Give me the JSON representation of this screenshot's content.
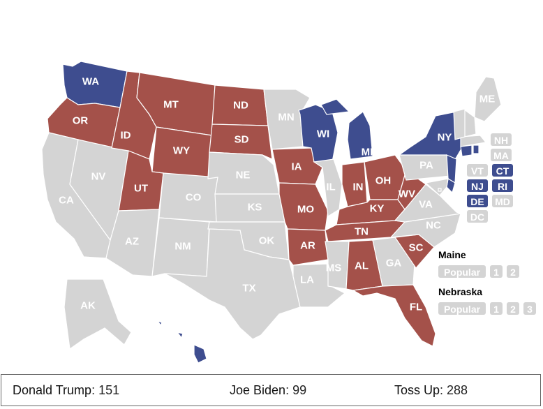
{
  "colors": {
    "trump": "#a4514a",
    "biden": "#3e4d8f",
    "tossup": "#d4d4d4"
  },
  "states": [
    {
      "abbr": "WA",
      "party": "biden"
    },
    {
      "abbr": "OR",
      "party": "trump"
    },
    {
      "abbr": "CA",
      "party": "tossup"
    },
    {
      "abbr": "NV",
      "party": "tossup"
    },
    {
      "abbr": "ID",
      "party": "trump"
    },
    {
      "abbr": "MT",
      "party": "trump"
    },
    {
      "abbr": "WY",
      "party": "trump"
    },
    {
      "abbr": "UT",
      "party": "trump"
    },
    {
      "abbr": "AZ",
      "party": "tossup"
    },
    {
      "abbr": "CO",
      "party": "tossup"
    },
    {
      "abbr": "NM",
      "party": "tossup"
    },
    {
      "abbr": "ND",
      "party": "trump"
    },
    {
      "abbr": "SD",
      "party": "trump"
    },
    {
      "abbr": "NE",
      "party": "tossup"
    },
    {
      "abbr": "KS",
      "party": "tossup"
    },
    {
      "abbr": "OK",
      "party": "tossup"
    },
    {
      "abbr": "TX",
      "party": "tossup"
    },
    {
      "abbr": "MN",
      "party": "tossup"
    },
    {
      "abbr": "IA",
      "party": "trump"
    },
    {
      "abbr": "MO",
      "party": "trump"
    },
    {
      "abbr": "AR",
      "party": "trump"
    },
    {
      "abbr": "LA",
      "party": "tossup"
    },
    {
      "abbr": "WI",
      "party": "biden"
    },
    {
      "abbr": "IL",
      "party": "tossup"
    },
    {
      "abbr": "MI",
      "party": "biden"
    },
    {
      "abbr": "IN",
      "party": "trump"
    },
    {
      "abbr": "OH",
      "party": "trump"
    },
    {
      "abbr": "KY",
      "party": "trump"
    },
    {
      "abbr": "TN",
      "party": "trump"
    },
    {
      "abbr": "MS",
      "party": "tossup"
    },
    {
      "abbr": "AL",
      "party": "trump"
    },
    {
      "abbr": "GA",
      "party": "tossup"
    },
    {
      "abbr": "FL",
      "party": "trump"
    },
    {
      "abbr": "SC",
      "party": "trump"
    },
    {
      "abbr": "NC",
      "party": "tossup"
    },
    {
      "abbr": "VA",
      "party": "tossup"
    },
    {
      "abbr": "WV",
      "party": "trump"
    },
    {
      "abbr": "PA",
      "party": "tossup"
    },
    {
      "abbr": "NY",
      "party": "biden"
    },
    {
      "abbr": "ME",
      "party": "tossup"
    },
    {
      "abbr": "AK",
      "party": "tossup"
    },
    {
      "abbr": "HI",
      "party": "biden"
    }
  ],
  "small_states": [
    {
      "abbr": "NH",
      "party": "tossup"
    },
    {
      "abbr": "MA",
      "party": "tossup"
    },
    {
      "abbr": "VT",
      "party": "tossup"
    },
    {
      "abbr": "CT",
      "party": "biden"
    },
    {
      "abbr": "NJ",
      "party": "biden"
    },
    {
      "abbr": "RI",
      "party": "biden"
    },
    {
      "abbr": "DE",
      "party": "biden"
    },
    {
      "abbr": "MD",
      "party": "tossup"
    },
    {
      "abbr": "DC",
      "party": "tossup"
    }
  ],
  "splits": [
    {
      "title": "Maine",
      "buttons": [
        "Popular",
        "1",
        "2"
      ]
    },
    {
      "title": "Nebraska",
      "buttons": [
        "Popular",
        "1",
        "2",
        "3"
      ]
    }
  ],
  "summary": {
    "trump_name": "Donald Trump",
    "trump_value": ": 151",
    "biden_name": "Joe Biden",
    "biden_value": ": 99",
    "tossup_name": "Toss Up",
    "tossup_value": ": 288"
  }
}
